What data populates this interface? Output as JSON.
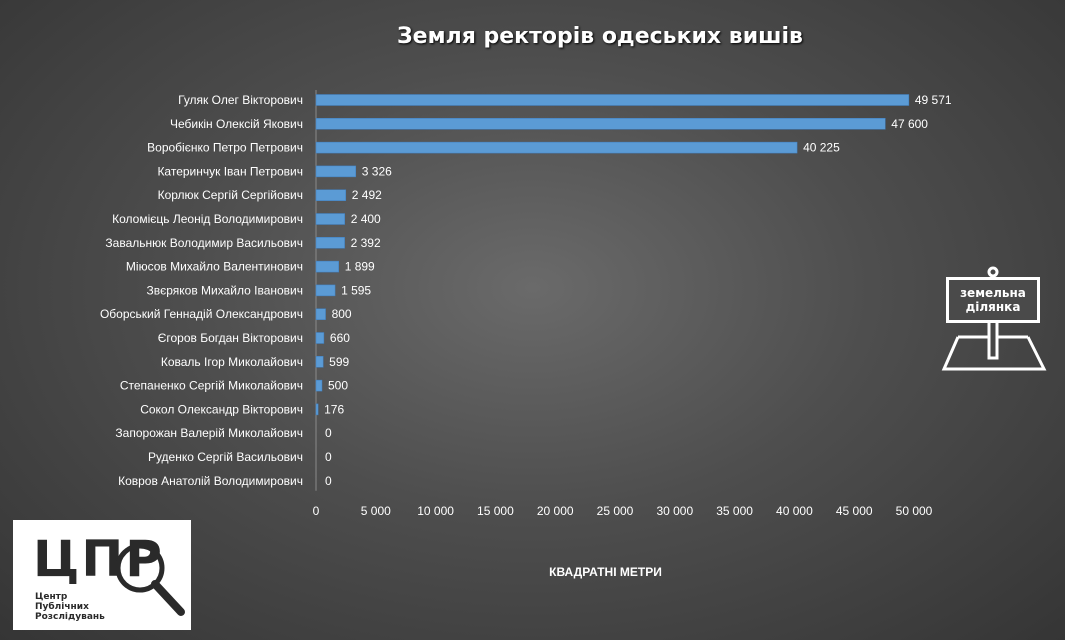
{
  "chart_data": {
    "type": "bar",
    "orientation": "horizontal",
    "title": "Земля ректорів одеських вишів",
    "xlabel": "КВАДРАТНІ МЕТРИ",
    "ylabel": "",
    "xlim": [
      0,
      50000
    ],
    "x_ticks": [
      "0",
      "5 000",
      "10 000",
      "15 000",
      "20 000",
      "25 000",
      "30 000",
      "35 000",
      "40 000",
      "45 000",
      "50 000"
    ],
    "x_tick_values": [
      0,
      5000,
      10000,
      15000,
      20000,
      25000,
      30000,
      35000,
      40000,
      45000,
      50000
    ],
    "grid": false,
    "bar_color": "#5b9bd5",
    "categories": [
      "Гуляк Олег Вікторович",
      "Чебикін Олексій Якович",
      "Воробієнко Петро Петрович",
      "Катеринчук Іван Петрович",
      "Корлюк Сергій Сергійович",
      "Коломієць Леонід Володимирович",
      "Завальнюк Володимир Васильович",
      "Міюсов Михайло Валентинович",
      "Звєряков Михайло Іванович",
      "Оборський Геннадій Олександрович",
      "Єгоров Богдан Вікторович",
      "Коваль Ігор Миколайович",
      "Степаненко Сергій Миколайович",
      "Сокол Олександр Вікторович",
      "Запорожан Валерій Миколайович",
      "Руденко Сергій Васильович",
      "Ковров Анатолій Володимирович"
    ],
    "values": [
      49571,
      47600,
      40225,
      3326,
      2492,
      2400,
      2392,
      1899,
      1595,
      800,
      660,
      599,
      500,
      176,
      0,
      0,
      0
    ],
    "value_labels": [
      "49 571",
      "47 600",
      "40 225",
      "3 326",
      "2 492",
      "2 400",
      "2 392",
      "1 899",
      "1 595",
      "800",
      "660",
      "599",
      "500",
      "176",
      "0",
      "0",
      "0"
    ]
  },
  "sign": {
    "line1": "земельна",
    "line2": "ділянка",
    "icon": "land-plot-sign-icon"
  },
  "logo": {
    "letters": "ЦПР",
    "line1": "Центр",
    "line2": "Публічних",
    "line3": "Розслідувань",
    "icon": "magnifier-icon"
  }
}
